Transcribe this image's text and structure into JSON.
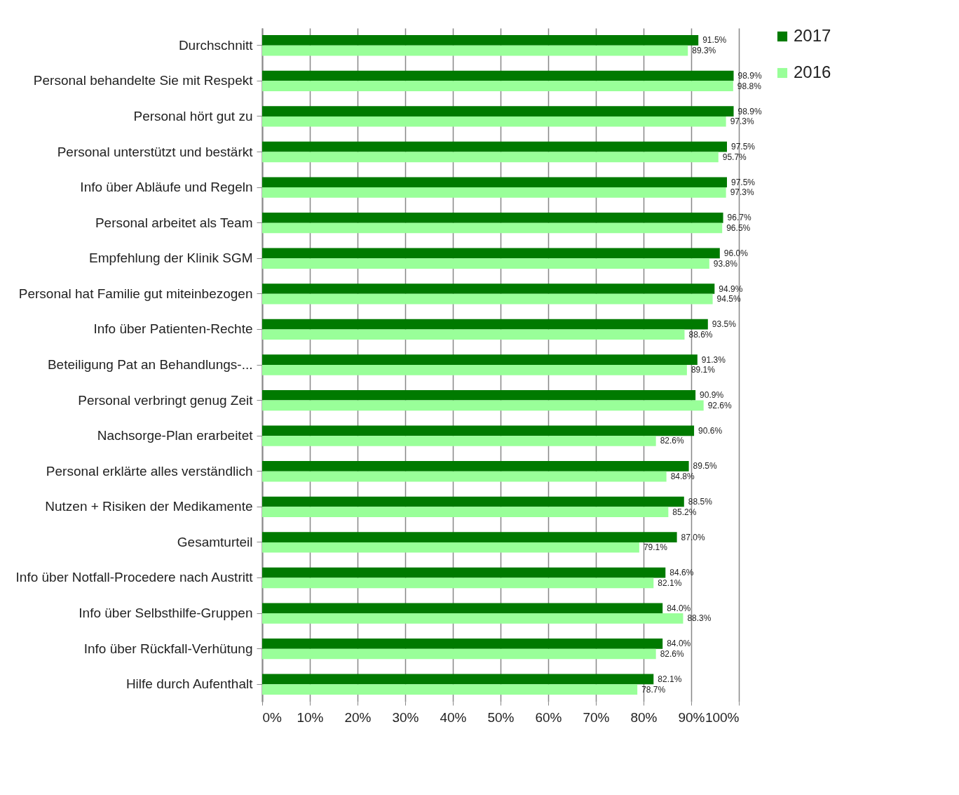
{
  "chart_data": {
    "type": "bar",
    "orientation": "horizontal",
    "categories": [
      "Durchschnitt",
      "Personal behandelte Sie mit Respekt",
      "Personal hört gut zu",
      "Personal unterstützt und bestärkt",
      "Info über Abläufe und Regeln",
      "Personal arbeitet als Team",
      "Empfehlung der Klinik SGM",
      "Personal hat Familie gut miteinbezogen",
      "Info über Patienten-Rechte",
      "Beteiligung Pat an Behandlungs-...",
      "Personal verbringt genug Zeit",
      "Nachsorge-Plan erarbeitet",
      "Personal erklärte alles verständlich",
      "Nutzen + Risiken der Medikamente",
      "Gesamturteil",
      "Info über Notfall-Procedere nach Austritt",
      "Info über Selbsthilfe-Gruppen",
      "Info über Rückfall-Verhütung",
      "Hilfe durch Aufenthalt"
    ],
    "series": [
      {
        "name": "2017",
        "color": "#007a00",
        "values": [
          91.5,
          98.9,
          98.9,
          97.5,
          97.5,
          96.7,
          96.0,
          94.9,
          93.5,
          91.3,
          90.9,
          90.6,
          89.5,
          88.5,
          87.0,
          84.6,
          84.0,
          84.0,
          82.1
        ],
        "value_labels": [
          "91.5%",
          "98.9%",
          "98.9%",
          "97.5%",
          "97.5%",
          "96.7%",
          "96.0%",
          "94.9%",
          "93.5%",
          "91.3%",
          "90.9%",
          "90.6%",
          "89.5%",
          "88.5%",
          "87.0%",
          "84.6%",
          "84.0%",
          "84.0%",
          "82.1%"
        ]
      },
      {
        "name": "2016",
        "color": "#99ff99",
        "values": [
          89.3,
          98.8,
          97.3,
          95.7,
          97.3,
          96.5,
          93.8,
          94.5,
          88.6,
          89.1,
          92.6,
          82.6,
          84.8,
          85.2,
          79.1,
          82.1,
          88.3,
          82.6,
          78.7
        ],
        "value_labels": [
          "89.3%",
          "98.8%",
          "97.3%",
          "95.7%",
          "97.3%",
          "96.5%",
          "93.8%",
          "94.5%",
          "88.6%",
          "89.1%",
          "92.6%",
          "82.6%",
          "84.8%",
          "85.2%",
          "79.1%",
          "82.1%",
          "88.3%",
          "82.6%",
          "78.7%"
        ]
      }
    ],
    "xlim": [
      0,
      100
    ],
    "xticks": [
      {
        "value": 0,
        "label": "0%"
      },
      {
        "value": 10,
        "label": "10%"
      },
      {
        "value": 20,
        "label": "20%"
      },
      {
        "value": 30,
        "label": "30%"
      },
      {
        "value": 40,
        "label": "40%"
      },
      {
        "value": 50,
        "label": "50%"
      },
      {
        "value": 60,
        "label": "60%"
      },
      {
        "value": 70,
        "label": "70%"
      },
      {
        "value": 80,
        "label": "80%"
      },
      {
        "value": 90,
        "label": "90%"
      },
      {
        "value": 100,
        "label": "100%"
      }
    ],
    "grid": "x",
    "legend": "right"
  }
}
